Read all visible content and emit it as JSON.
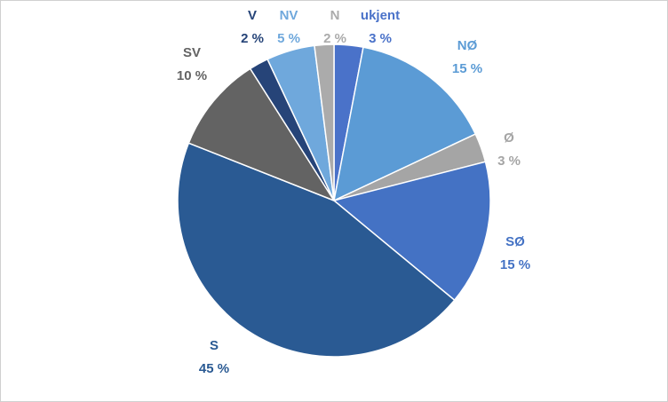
{
  "chart_data": {
    "type": "pie",
    "categories": [
      "ukjent",
      "NØ",
      "Ø",
      "SØ",
      "S",
      "SV",
      "V",
      "NV",
      "N"
    ],
    "values": [
      3,
      15,
      3,
      15,
      45,
      10,
      2,
      5,
      2
    ],
    "value_labels": [
      "3 %",
      "15 %",
      "3 %",
      "15 %",
      "45 %",
      "10 %",
      "2 %",
      "5 %",
      "2 %"
    ],
    "colors": [
      "#4a72c9",
      "#5b9bd5",
      "#a5a5a5",
      "#4472c4",
      "#2a5a93",
      "#636363",
      "#264478",
      "#6fa8dc",
      "#ababab"
    ],
    "label_colors": [
      "#4a72c9",
      "#5b9bd5",
      "#a5a5a5",
      "#4472c4",
      "#2a5a93",
      "#636363",
      "#264478",
      "#6fa8dc",
      "#ababab"
    ]
  }
}
